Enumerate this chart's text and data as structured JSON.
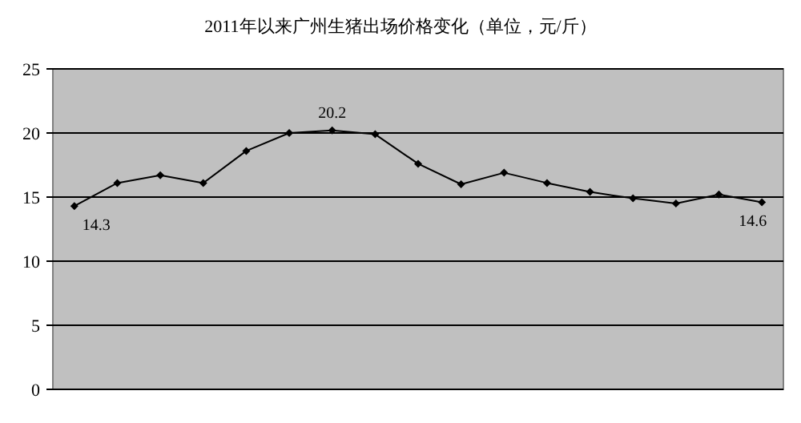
{
  "chart_data": {
    "type": "line",
    "title": "2011年以来广州生猪出场价格变化（单位，元/斤）",
    "categories": [
      null,
      null,
      null,
      null,
      null,
      null,
      null,
      null,
      null,
      null,
      null,
      null,
      null,
      null,
      null,
      null,
      null
    ],
    "series": [
      {
        "color": "#000000",
        "values": [
          14.3,
          16.1,
          16.7,
          16.1,
          18.6,
          20.0,
          20.2,
          19.9,
          17.6,
          16.0,
          16.9,
          16.1,
          15.4,
          14.9,
          14.5,
          15.2,
          14.6
        ],
        "value_labels": [
          "14.3",
          null,
          null,
          null,
          null,
          null,
          "20.2",
          null,
          null,
          null,
          null,
          null,
          null,
          null,
          null,
          null,
          "14.6"
        ]
      }
    ],
    "ylim": [
      0,
      25
    ],
    "yticks": [
      0,
      5,
      10,
      15,
      20,
      25
    ],
    "grid": "y",
    "marker": "diamond"
  }
}
